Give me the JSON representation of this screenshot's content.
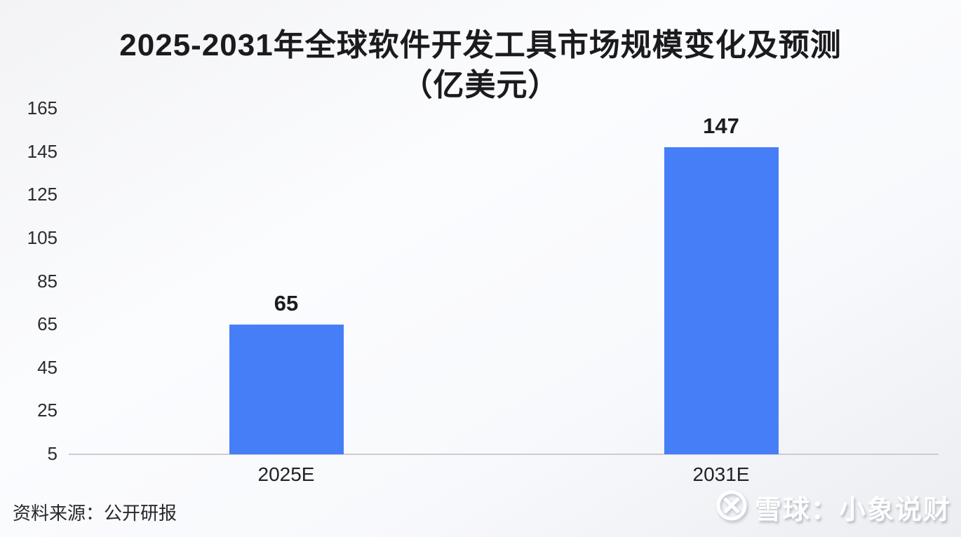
{
  "title": {
    "line1": "2025-2031年全球软件开发工具市场规模变化及预测",
    "line2": "（亿美元）"
  },
  "chart_data": {
    "type": "bar",
    "title": "2025-2031年全球软件开发工具市场规模变化及预测",
    "subtitle": "（亿美元）",
    "categories": [
      "2025E",
      "2031E"
    ],
    "values": [
      65,
      147
    ],
    "data_labels": [
      "65",
      "147"
    ],
    "xlabel": "",
    "ylabel": "",
    "ylim": [
      5,
      165
    ],
    "yticks": [
      165,
      145,
      125,
      105,
      85,
      65,
      45,
      25,
      5
    ],
    "bar_color": "#467EF7",
    "axis_line_color": "#cbcdd2",
    "grid": false,
    "legend": "none"
  },
  "footer": {
    "source": "资料来源：公开研报"
  },
  "watermark": {
    "icon": "xueqiu-logo",
    "text": "雪球：小象说财"
  }
}
